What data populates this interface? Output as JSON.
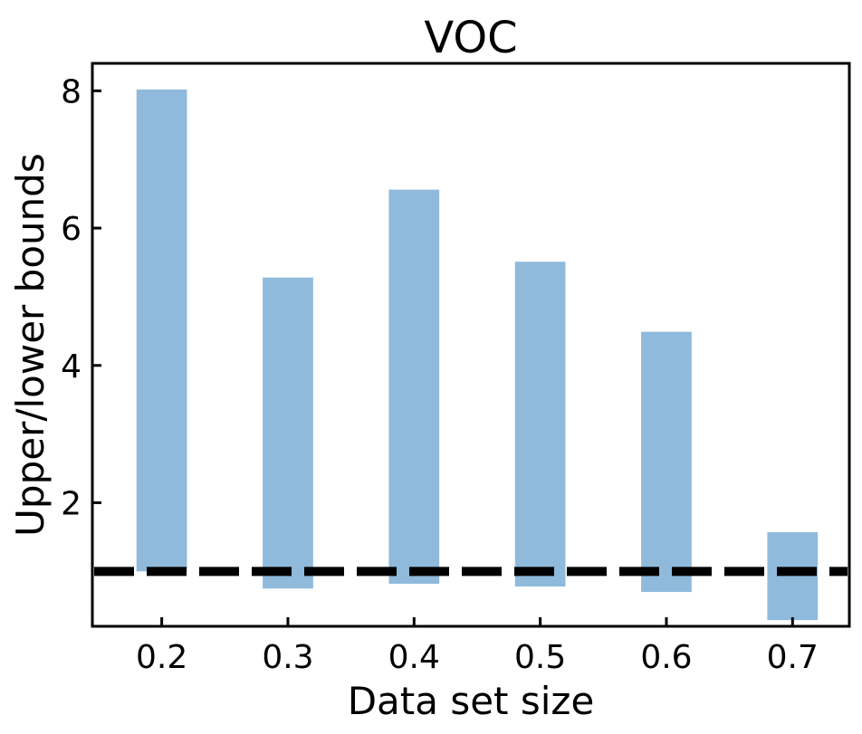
{
  "chart_data": {
    "type": "bar",
    "title": "VOC",
    "xlabel": "Data set size",
    "ylabel": "Upper/lower bounds",
    "categories": [
      "0.2",
      "0.3",
      "0.4",
      "0.5",
      "0.6",
      "0.7"
    ],
    "bars": [
      {
        "x": 0.2,
        "low": 1.0,
        "high": 8.02
      },
      {
        "x": 0.3,
        "low": 0.75,
        "high": 5.28
      },
      {
        "x": 0.4,
        "low": 0.82,
        "high": 6.56
      },
      {
        "x": 0.5,
        "low": 0.78,
        "high": 5.51
      },
      {
        "x": 0.6,
        "low": 0.7,
        "high": 4.49
      },
      {
        "x": 0.7,
        "low": 0.29,
        "high": 1.57
      }
    ],
    "reference_line": {
      "y": 1.0,
      "style": "dashed",
      "color": "#000000"
    },
    "xlim": [
      0.145,
      0.745
    ],
    "ylim": [
      0.2,
      8.4
    ],
    "yticks": [
      2,
      4,
      6,
      8
    ],
    "xticks": [
      0.2,
      0.3,
      0.4,
      0.5,
      0.6,
      0.7
    ],
    "bar_width": 0.04,
    "bar_color": "#8fbadb",
    "grid": false,
    "legend": "none"
  }
}
